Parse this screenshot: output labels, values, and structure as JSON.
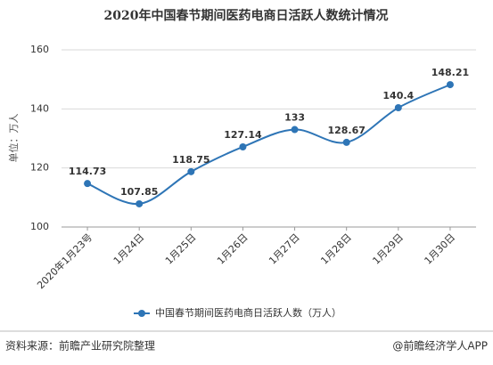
{
  "chart_data": {
    "type": "line",
    "title": "2020年中国春节期间医药电商日活跃人数统计情况",
    "ylabel": "单位：万人",
    "categories": [
      "2020年1月23号",
      "1月24日",
      "1月25日",
      "1月26日",
      "1月27日",
      "1月28日",
      "1月29日",
      "1月30日"
    ],
    "series": [
      {
        "name": "中国春节期间医药电商日活跃人数（万人）",
        "color": "#2e75b6",
        "values": [
          114.73,
          107.85,
          118.75,
          127.14,
          133,
          128.67,
          140.4,
          148.21
        ]
      }
    ],
    "ylim": [
      100,
      160
    ],
    "yticks": [
      100,
      120,
      140,
      160
    ],
    "grid": true,
    "source": "资料来源：前瞻产业研究院整理",
    "credit": "@前瞻经济学人APP"
  }
}
